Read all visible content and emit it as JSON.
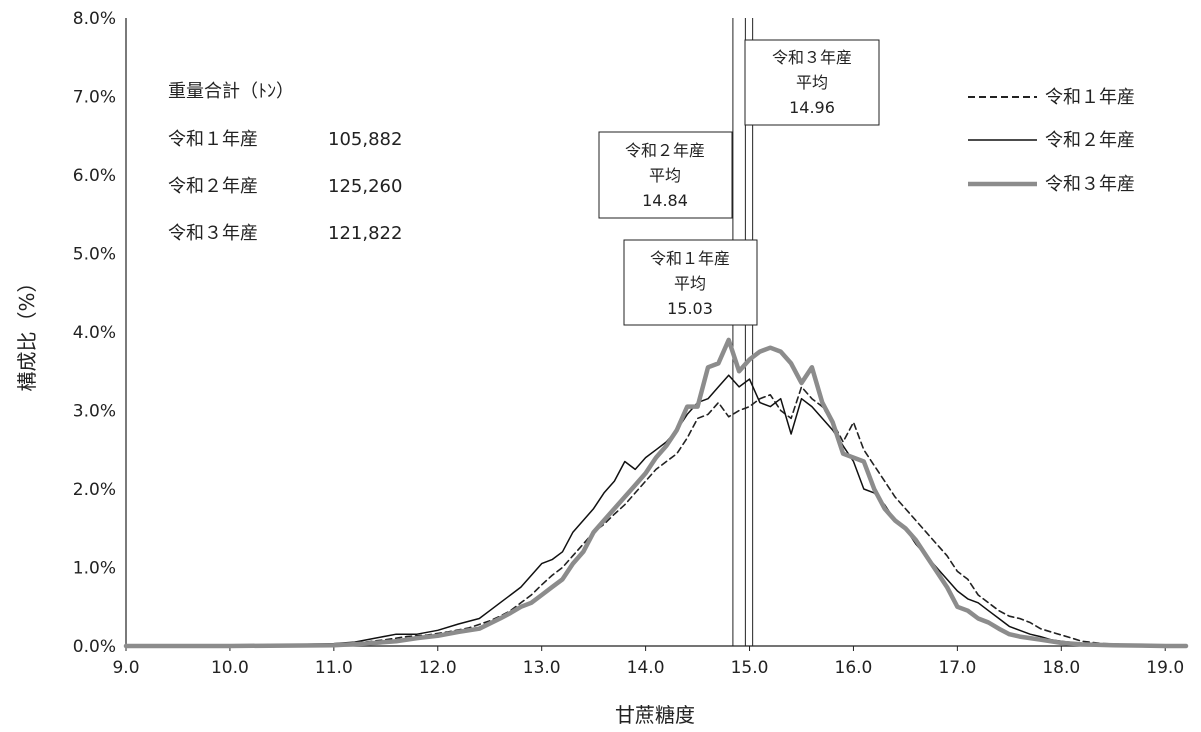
{
  "chart_data": {
    "type": "line",
    "xlabel": "甘蔗糖度",
    "ylabel": "構成比（%）",
    "xlim": [
      9.0,
      19.2
    ],
    "ylim": [
      0.0,
      8.0
    ],
    "x_ticks": [
      "9.0",
      "10.0",
      "11.0",
      "12.0",
      "13.0",
      "14.0",
      "15.0",
      "16.0",
      "17.0",
      "18.0",
      "19.0"
    ],
    "y_ticks": [
      "0.0%",
      "1.0%",
      "2.0%",
      "3.0%",
      "4.0%",
      "5.0%",
      "6.0%",
      "7.0%",
      "8.0%"
    ],
    "legend": {
      "placement": "top-right"
    },
    "info": {
      "header": "重量合計（ﾄﾝ）",
      "rows": [
        {
          "label": "令和１年産",
          "value": "105,882"
        },
        {
          "label": "令和２年産",
          "value": "125,260"
        },
        {
          "label": "令和３年産",
          "value": "121,822"
        }
      ]
    },
    "mean_markers": [
      {
        "x": 15.03,
        "lines": [
          "令和１年産",
          "平均",
          "15.03"
        ]
      },
      {
        "x": 14.84,
        "lines": [
          "令和２年産",
          "平均",
          "14.84"
        ]
      },
      {
        "x": 14.96,
        "lines": [
          "令和３年産",
          "平均",
          "14.96"
        ]
      }
    ],
    "series": [
      {
        "name": "令和１年産",
        "color": "#222222",
        "style": "dashed",
        "points": [
          [
            9.0,
            0.0
          ],
          [
            10.0,
            0.0
          ],
          [
            11.0,
            0.02
          ],
          [
            11.3,
            0.05
          ],
          [
            11.5,
            0.08
          ],
          [
            11.7,
            0.12
          ],
          [
            11.9,
            0.14
          ],
          [
            12.1,
            0.18
          ],
          [
            12.3,
            0.23
          ],
          [
            12.5,
            0.32
          ],
          [
            12.6,
            0.38
          ],
          [
            12.7,
            0.45
          ],
          [
            12.8,
            0.55
          ],
          [
            12.9,
            0.65
          ],
          [
            13.0,
            0.78
          ],
          [
            13.1,
            0.9
          ],
          [
            13.2,
            1.0
          ],
          [
            13.3,
            1.15
          ],
          [
            13.4,
            1.3
          ],
          [
            13.5,
            1.45
          ],
          [
            13.6,
            1.55
          ],
          [
            13.7,
            1.68
          ],
          [
            13.8,
            1.8
          ],
          [
            13.9,
            1.95
          ],
          [
            14.0,
            2.1
          ],
          [
            14.1,
            2.25
          ],
          [
            14.2,
            2.35
          ],
          [
            14.3,
            2.45
          ],
          [
            14.4,
            2.65
          ],
          [
            14.5,
            2.9
          ],
          [
            14.6,
            2.95
          ],
          [
            14.7,
            3.1
          ],
          [
            14.8,
            2.92
          ],
          [
            14.9,
            3.0
          ],
          [
            15.0,
            3.05
          ],
          [
            15.1,
            3.15
          ],
          [
            15.2,
            3.2
          ],
          [
            15.3,
            3.0
          ],
          [
            15.4,
            2.9
          ],
          [
            15.5,
            3.3
          ],
          [
            15.6,
            3.15
          ],
          [
            15.7,
            3.05
          ],
          [
            15.8,
            2.85
          ],
          [
            15.9,
            2.6
          ],
          [
            16.0,
            2.85
          ],
          [
            16.1,
            2.5
          ],
          [
            16.2,
            2.3
          ],
          [
            16.3,
            2.1
          ],
          [
            16.4,
            1.9
          ],
          [
            16.5,
            1.75
          ],
          [
            16.6,
            1.6
          ],
          [
            16.7,
            1.45
          ],
          [
            16.8,
            1.3
          ],
          [
            16.9,
            1.15
          ],
          [
            17.0,
            0.95
          ],
          [
            17.1,
            0.85
          ],
          [
            17.2,
            0.65
          ],
          [
            17.3,
            0.55
          ],
          [
            17.4,
            0.45
          ],
          [
            17.5,
            0.38
          ],
          [
            17.6,
            0.35
          ],
          [
            17.7,
            0.3
          ],
          [
            17.8,
            0.22
          ],
          [
            17.9,
            0.18
          ],
          [
            18.0,
            0.14
          ],
          [
            18.1,
            0.1
          ],
          [
            18.2,
            0.06
          ],
          [
            18.4,
            0.03
          ],
          [
            18.6,
            0.02
          ],
          [
            19.0,
            0.01
          ],
          [
            19.2,
            0.0
          ]
        ]
      },
      {
        "name": "令和２年産",
        "color": "#111111",
        "style": "solid",
        "points": [
          [
            9.0,
            0.0
          ],
          [
            10.0,
            0.0
          ],
          [
            11.0,
            0.03
          ],
          [
            11.2,
            0.05
          ],
          [
            11.4,
            0.1
          ],
          [
            11.6,
            0.15
          ],
          [
            11.8,
            0.15
          ],
          [
            12.0,
            0.2
          ],
          [
            12.2,
            0.28
          ],
          [
            12.4,
            0.35
          ],
          [
            12.5,
            0.45
          ],
          [
            12.6,
            0.55
          ],
          [
            12.7,
            0.65
          ],
          [
            12.8,
            0.75
          ],
          [
            12.9,
            0.9
          ],
          [
            13.0,
            1.05
          ],
          [
            13.1,
            1.1
          ],
          [
            13.2,
            1.2
          ],
          [
            13.3,
            1.45
          ],
          [
            13.4,
            1.6
          ],
          [
            13.5,
            1.75
          ],
          [
            13.6,
            1.95
          ],
          [
            13.7,
            2.1
          ],
          [
            13.8,
            2.35
          ],
          [
            13.9,
            2.25
          ],
          [
            14.0,
            2.4
          ],
          [
            14.1,
            2.5
          ],
          [
            14.2,
            2.6
          ],
          [
            14.3,
            2.75
          ],
          [
            14.4,
            2.95
          ],
          [
            14.5,
            3.1
          ],
          [
            14.6,
            3.15
          ],
          [
            14.7,
            3.3
          ],
          [
            14.8,
            3.45
          ],
          [
            14.9,
            3.3
          ],
          [
            15.0,
            3.4
          ],
          [
            15.1,
            3.1
          ],
          [
            15.2,
            3.05
          ],
          [
            15.3,
            3.15
          ],
          [
            15.4,
            2.7
          ],
          [
            15.5,
            3.15
          ],
          [
            15.6,
            3.05
          ],
          [
            15.7,
            2.9
          ],
          [
            15.8,
            2.75
          ],
          [
            15.9,
            2.55
          ],
          [
            16.0,
            2.35
          ],
          [
            16.1,
            2.0
          ],
          [
            16.2,
            1.95
          ],
          [
            16.3,
            1.8
          ],
          [
            16.4,
            1.6
          ],
          [
            16.5,
            1.5
          ],
          [
            16.6,
            1.3
          ],
          [
            16.7,
            1.15
          ],
          [
            16.8,
            1.0
          ],
          [
            16.9,
            0.85
          ],
          [
            17.0,
            0.7
          ],
          [
            17.1,
            0.6
          ],
          [
            17.2,
            0.55
          ],
          [
            17.3,
            0.45
          ],
          [
            17.4,
            0.35
          ],
          [
            17.5,
            0.25
          ],
          [
            17.6,
            0.2
          ],
          [
            17.7,
            0.15
          ],
          [
            17.8,
            0.12
          ],
          [
            17.9,
            0.08
          ],
          [
            18.0,
            0.06
          ],
          [
            18.2,
            0.03
          ],
          [
            18.5,
            0.01
          ],
          [
            19.0,
            0.0
          ],
          [
            19.2,
            0.0
          ]
        ]
      },
      {
        "name": "令和３年産",
        "color": "#8c8c8c",
        "style": "solid-thick",
        "points": [
          [
            9.0,
            0.0
          ],
          [
            10.0,
            0.0
          ],
          [
            11.0,
            0.01
          ],
          [
            11.3,
            0.03
          ],
          [
            11.6,
            0.06
          ],
          [
            11.8,
            0.1
          ],
          [
            12.0,
            0.13
          ],
          [
            12.2,
            0.18
          ],
          [
            12.4,
            0.22
          ],
          [
            12.6,
            0.35
          ],
          [
            12.7,
            0.42
          ],
          [
            12.8,
            0.5
          ],
          [
            12.9,
            0.55
          ],
          [
            13.0,
            0.65
          ],
          [
            13.1,
            0.75
          ],
          [
            13.2,
            0.85
          ],
          [
            13.3,
            1.05
          ],
          [
            13.4,
            1.2
          ],
          [
            13.5,
            1.45
          ],
          [
            13.6,
            1.6
          ],
          [
            13.7,
            1.75
          ],
          [
            13.8,
            1.9
          ],
          [
            13.9,
            2.05
          ],
          [
            14.0,
            2.2
          ],
          [
            14.1,
            2.4
          ],
          [
            14.2,
            2.55
          ],
          [
            14.3,
            2.75
          ],
          [
            14.4,
            3.05
          ],
          [
            14.5,
            3.05
          ],
          [
            14.6,
            3.55
          ],
          [
            14.7,
            3.6
          ],
          [
            14.8,
            3.9
          ],
          [
            14.9,
            3.5
          ],
          [
            15.0,
            3.65
          ],
          [
            15.1,
            3.75
          ],
          [
            15.2,
            3.8
          ],
          [
            15.3,
            3.75
          ],
          [
            15.4,
            3.6
          ],
          [
            15.5,
            3.35
          ],
          [
            15.6,
            3.55
          ],
          [
            15.7,
            3.1
          ],
          [
            15.8,
            2.85
          ],
          [
            15.9,
            2.45
          ],
          [
            16.0,
            2.4
          ],
          [
            16.1,
            2.35
          ],
          [
            16.2,
            2.0
          ],
          [
            16.3,
            1.75
          ],
          [
            16.4,
            1.6
          ],
          [
            16.5,
            1.5
          ],
          [
            16.6,
            1.35
          ],
          [
            16.7,
            1.15
          ],
          [
            16.8,
            0.95
          ],
          [
            16.9,
            0.75
          ],
          [
            17.0,
            0.5
          ],
          [
            17.1,
            0.45
          ],
          [
            17.2,
            0.35
          ],
          [
            17.3,
            0.3
          ],
          [
            17.4,
            0.22
          ],
          [
            17.5,
            0.15
          ],
          [
            17.6,
            0.12
          ],
          [
            17.7,
            0.1
          ],
          [
            17.8,
            0.08
          ],
          [
            17.9,
            0.06
          ],
          [
            18.0,
            0.04
          ],
          [
            18.2,
            0.02
          ],
          [
            18.5,
            0.01
          ],
          [
            19.0,
            0.0
          ],
          [
            19.2,
            0.0
          ]
        ]
      }
    ]
  }
}
